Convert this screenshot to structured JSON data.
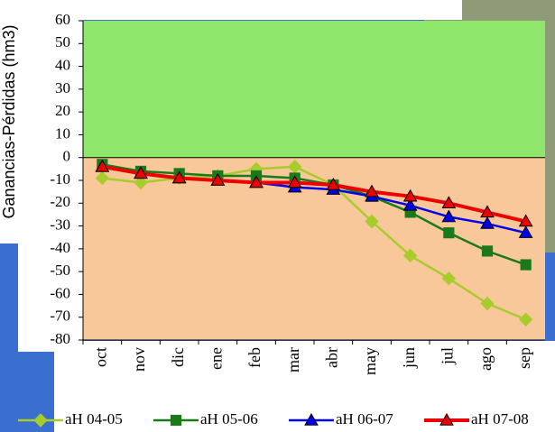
{
  "chart_data": {
    "type": "line",
    "y_label": "Ganancias-Pérdidas (hm3)",
    "categories": [
      "oct",
      "nov",
      "dic",
      "ene",
      "feb",
      "mar",
      "abr",
      "may",
      "jun",
      "jul",
      "ago",
      "sep"
    ],
    "series": [
      {
        "name": "aH 04-05",
        "color": "#a8cc2c",
        "marker": "diamond",
        "values": [
          -9,
          -11,
          -9,
          -8,
          -5,
          -4,
          -12,
          -28,
          -43,
          -53,
          -64,
          -71
        ]
      },
      {
        "name": "aH 05-06",
        "color": "#1a7a1a",
        "marker": "square",
        "values": [
          -3,
          -6,
          -7,
          -8,
          -8,
          -9,
          -12,
          -17,
          -24,
          -33,
          -41,
          -47
        ]
      },
      {
        "name": "aH 06-07",
        "color": "#0000ee",
        "marker": "triangle",
        "values": [
          -4,
          -7,
          -9,
          -10,
          -11,
          -13,
          -14,
          -17,
          -21,
          -26,
          -29,
          -33
        ]
      },
      {
        "name": "aH 07-08",
        "color": "#ee0000",
        "marker": "triangle",
        "values": [
          -4,
          -7,
          -9,
          -10,
          -11,
          -11,
          -12,
          -15,
          -17,
          -20,
          -24,
          -28
        ]
      }
    ],
    "ylim": [
      -80,
      60
    ],
    "yticks": [
      -80,
      -70,
      -60,
      -50,
      -40,
      -30,
      -20,
      -10,
      0,
      10,
      20,
      30,
      40,
      50,
      60
    ],
    "positive_color": "#8ee66a",
    "negative_color": "#f9c89a"
  }
}
